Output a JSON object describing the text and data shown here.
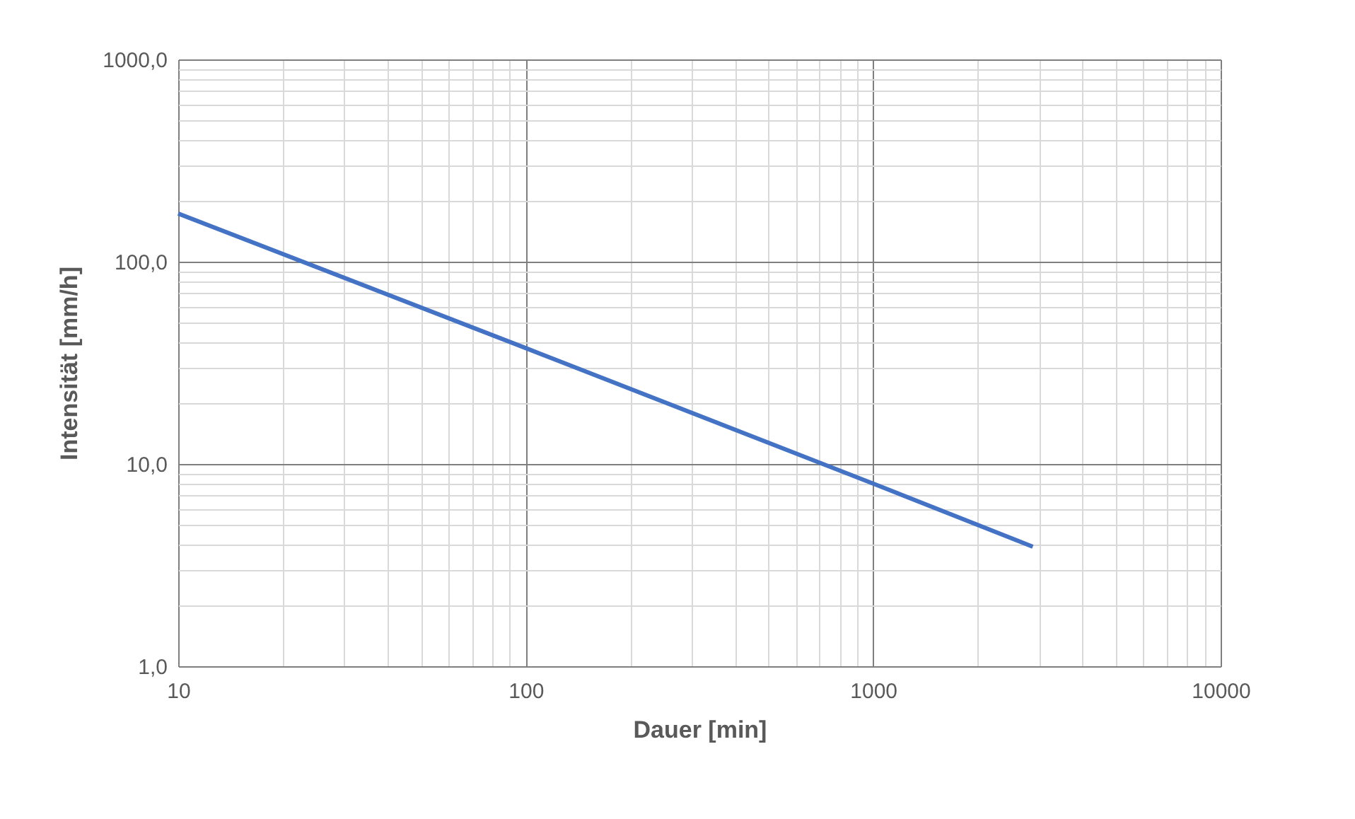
{
  "chart_data": {
    "type": "line",
    "xlabel": "Dauer [min]",
    "ylabel": "Intensität [mm/h]",
    "x": [
      10,
      100,
      1000,
      2880
    ],
    "series": [
      {
        "color": "#4472c4",
        "values": [
          173,
          37.4,
          8.0,
          3.9
        ]
      }
    ],
    "log": "xy",
    "grid": true,
    "marker": "none",
    "line_style": "solid",
    "xlim": [
      10,
      10000
    ],
    "xticks": [
      10,
      100,
      1000,
      10000
    ],
    "ylim": [
      1,
      1000
    ],
    "yticks": [
      {
        "value": 1,
        "label": "1,0"
      },
      {
        "value": 10,
        "label": "10,0"
      },
      {
        "value": 100,
        "label": "100,0"
      },
      {
        "value": 1000,
        "label": "1000,0"
      }
    ]
  }
}
